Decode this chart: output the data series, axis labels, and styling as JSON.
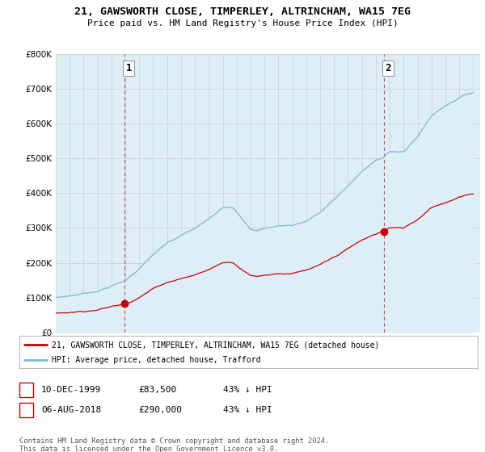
{
  "title": "21, GAWSWORTH CLOSE, TIMPERLEY, ALTRINCHAM, WA15 7EG",
  "subtitle": "Price paid vs. HM Land Registry's House Price Index (HPI)",
  "legend_line1": "21, GAWSWORTH CLOSE, TIMPERLEY, ALTRINCHAM, WA15 7EG (detached house)",
  "legend_line2": "HPI: Average price, detached house, Trafford",
  "sale1_date": "10-DEC-1999",
  "sale1_price": "£83,500",
  "sale1_hpi": "43% ↓ HPI",
  "sale2_date": "06-AUG-2018",
  "sale2_price": "£290,000",
  "sale2_hpi": "43% ↓ HPI",
  "footnote": "Contains HM Land Registry data © Crown copyright and database right 2024.\nThis data is licensed under the Open Government Licence v3.0.",
  "ylim": [
    0,
    800000
  ],
  "yticks": [
    0,
    100000,
    200000,
    300000,
    400000,
    500000,
    600000,
    700000,
    800000
  ],
  "ytick_labels": [
    "£0",
    "£100K",
    "£200K",
    "£300K",
    "£400K",
    "£500K",
    "£600K",
    "£700K",
    "£800K"
  ],
  "hpi_color": "#7ab8d9",
  "hpi_fill": "#ddeef7",
  "price_color": "#cc0000",
  "background_color": "#ffffff",
  "grid_color": "#cccccc",
  "sale1_year": 1999.94,
  "sale1_value": 83500,
  "sale2_year": 2018.58,
  "sale2_value": 290000,
  "xlim_start": 1995,
  "xlim_end": 2025.5
}
